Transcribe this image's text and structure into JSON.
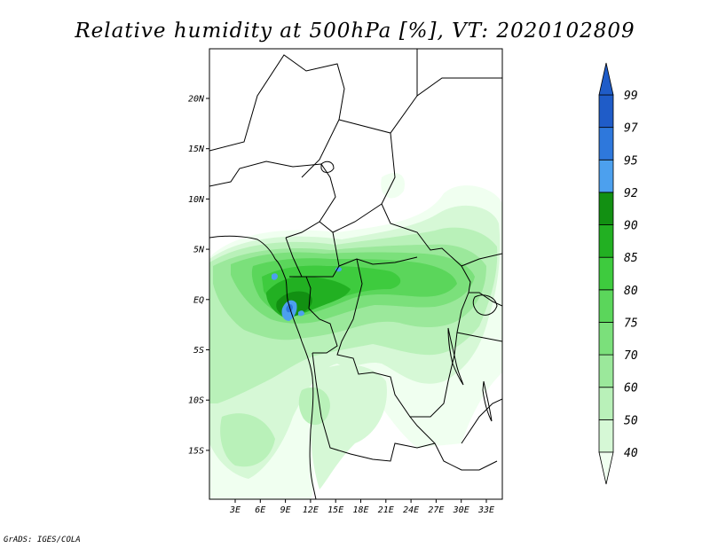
{
  "title": "Relative humidity at 500hPa [%], VT: 2020102809",
  "credit": "GrADS: IGES/COLA",
  "map": {
    "lon_labels": [
      "3E",
      "6E",
      "9E",
      "12E",
      "15E",
      "18E",
      "21E",
      "24E",
      "27E",
      "30E",
      "33E"
    ],
    "lat_labels": [
      "20N",
      "15N",
      "10N",
      "5N",
      "EQ",
      "5S",
      "10S",
      "15S"
    ]
  },
  "colorbar": {
    "levels": [
      "40",
      "50",
      "60",
      "70",
      "75",
      "80",
      "85",
      "90",
      "92",
      "95",
      "97",
      "99"
    ],
    "colors": [
      "#f0fff0",
      "#d6f8d6",
      "#b9f1b9",
      "#9be89b",
      "#7be07b",
      "#5bd65b",
      "#3ecb3e",
      "#22b022",
      "#129012",
      "#4ca0ee",
      "#2e78dc",
      "#1f5cc8"
    ]
  }
}
